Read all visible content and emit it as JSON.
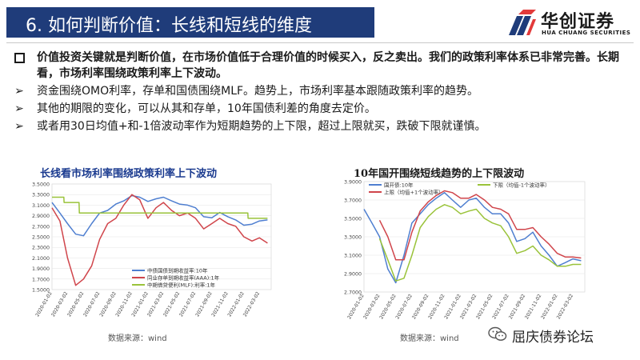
{
  "header": {
    "title": "6. 如何判断价值：长线和短线的维度",
    "logo_cn": "华创证券",
    "logo_en": "HUA CHUANG SECURITIES"
  },
  "bullets": [
    {
      "type": "square",
      "bold": true,
      "text": "价值投资关键就是判断价值，在市场价值低于合理价值的时候买入，反之卖出。我们的政策利率体系已非常完善。长期看，市场利率围绕政策利率上下波动。"
    },
    {
      "type": "arrow",
      "bold": false,
      "text": "资金围绕OMO利率，存单和国债围绕MLF。趋势上，市场利率基本跟随政策利率的趋势。"
    },
    {
      "type": "arrow",
      "bold": false,
      "text": "其他的期限的变化，可以从其和存单，10年国债利差的角度去定价。"
    },
    {
      "type": "arrow",
      "bold": false,
      "text": "或者用30日均值+和-1倍波动率作为短期趋势的上下限，超过上限就买，跌破下限就谨慎。"
    }
  ],
  "icons": {
    "bullet_square": "square-bullet-icon",
    "bullet_arrow": "arrow-bullet-icon",
    "wechat": "wechat-icon",
    "logo": "hc-logo-icon"
  },
  "chart_left": {
    "title": "长线看市场利率围绕政策利率上下波动",
    "source": "数据来源：wind"
  },
  "chart_right": {
    "title": "10年国开围绕短线趋势的上下限波动",
    "source": "数据来源：wind"
  },
  "footer": {
    "wechat_text": "屈庆债券论坛"
  },
  "colors": {
    "title_bar": "#1f3c7a",
    "blue": "#4f7fd0",
    "red": "#d0454b",
    "green": "#9ac33a",
    "logo_red": "#e23a3a",
    "logo_blue": "#1f3c7a"
  },
  "chart_data": [
    {
      "type": "line",
      "ylim": [
        1.5,
        3.5
      ],
      "y_ticks": [
        "3.5000",
        "3.3000",
        "3.1000",
        "2.9000",
        "2.7000",
        "2.5000",
        "2.3000",
        "2.1000",
        "1.9000",
        "1.7000",
        "1.5000"
      ],
      "x_ticks": [
        "2020-01-02",
        "2020-03-02",
        "2020-05-02",
        "2020-07-02",
        "2020-09-02",
        "2020-11-02",
        "2021-01-02",
        "2021-03-02",
        "2021-05-02",
        "2021-07-02",
        "2021-09-02",
        "2021-11-02",
        "2022-01-02",
        "2022-03-02"
      ],
      "legend_position": "bottom-center",
      "series": [
        {
          "name": "中债国债到期收益率:10年",
          "color": "#4f7fd0",
          "x": [
            "2020-01-02",
            "2020-02-01",
            "2020-03-01",
            "2020-04-01",
            "2020-05-01",
            "2020-06-01",
            "2020-07-01",
            "2020-08-01",
            "2020-09-01",
            "2020-10-01",
            "2020-11-01",
            "2020-12-01",
            "2021-01-01",
            "2021-02-01",
            "2021-03-01",
            "2021-04-01",
            "2021-05-01",
            "2021-06-01",
            "2021-07-01",
            "2021-08-01",
            "2021-09-01",
            "2021-10-01",
            "2021-11-01",
            "2021-12-01",
            "2022-01-01",
            "2022-02-01",
            "2022-03-01",
            "2022-04-01"
          ],
          "values": [
            3.15,
            2.95,
            2.75,
            2.55,
            2.52,
            2.75,
            2.95,
            3.0,
            3.12,
            3.18,
            3.28,
            3.25,
            3.17,
            3.22,
            3.25,
            3.18,
            3.12,
            3.1,
            3.05,
            2.88,
            2.86,
            2.96,
            2.88,
            2.82,
            2.72,
            2.74,
            2.8,
            2.82
          ]
        },
        {
          "name": "同业存单到期收益率(AAA):1年",
          "color": "#d0454b",
          "x": [
            "2020-01-02",
            "2020-02-01",
            "2020-03-01",
            "2020-04-01",
            "2020-05-01",
            "2020-06-01",
            "2020-07-01",
            "2020-08-01",
            "2020-09-01",
            "2020-10-01",
            "2020-11-01",
            "2020-12-01",
            "2021-01-01",
            "2021-02-01",
            "2021-03-01",
            "2021-04-01",
            "2021-05-01",
            "2021-06-01",
            "2021-07-01",
            "2021-08-01",
            "2021-09-01",
            "2021-10-01",
            "2021-11-01",
            "2021-12-01",
            "2022-01-01",
            "2022-02-01",
            "2022-03-01",
            "2022-04-01"
          ],
          "values": [
            3.05,
            2.8,
            2.1,
            1.58,
            1.7,
            1.95,
            2.45,
            2.75,
            2.85,
            3.1,
            3.3,
            3.2,
            2.85,
            3.05,
            3.15,
            3.0,
            2.9,
            2.95,
            2.85,
            2.65,
            2.75,
            2.85,
            2.75,
            2.7,
            2.5,
            2.42,
            2.48,
            2.38
          ]
        },
        {
          "name": "中期借贷便利(MLF):利率:1年",
          "color": "#9ac33a",
          "x": [
            "2020-01-02",
            "2020-02-16",
            "2020-02-17",
            "2020-04-14",
            "2020-04-15",
            "2022-01-16",
            "2022-01-17",
            "2022-04-01"
          ],
          "values": [
            3.25,
            3.25,
            3.15,
            3.15,
            2.95,
            2.95,
            2.85,
            2.85
          ]
        }
      ]
    },
    {
      "type": "line",
      "ylim": [
        2.7,
        3.9
      ],
      "y_ticks": [
        "3.9000",
        "3.7000",
        "3.5000",
        "3.3000",
        "3.1000",
        "2.9000",
        "2.7000"
      ],
      "x_ticks": [
        "2020-01-02",
        "2020-03-02",
        "2020-05-02",
        "2020-07-02",
        "2020-09-02",
        "2020-11-02",
        "2021-01-02",
        "2021-03-02",
        "2021-05-02",
        "2021-07-02",
        "2021-09-02",
        "2021-11-02",
        "2022-01-02",
        "2022-03-02"
      ],
      "legend_position": "top",
      "series": [
        {
          "name": "国开债:10年",
          "color": "#4f7fd0",
          "x": [
            "2020-01-02",
            "2020-02-01",
            "2020-03-01",
            "2020-04-01",
            "2020-05-01",
            "2020-06-01",
            "2020-07-01",
            "2020-08-01",
            "2020-09-01",
            "2020-10-01",
            "2020-11-01",
            "2020-12-01",
            "2021-01-01",
            "2021-02-01",
            "2021-03-01",
            "2021-04-01",
            "2021-05-01",
            "2021-06-01",
            "2021-07-01",
            "2021-08-01",
            "2021-09-01",
            "2021-10-01",
            "2021-11-01",
            "2021-12-01",
            "2022-01-01",
            "2022-02-01",
            "2022-03-01",
            "2022-04-01"
          ],
          "values": [
            3.6,
            3.45,
            3.3,
            2.95,
            2.8,
            3.1,
            3.45,
            3.55,
            3.65,
            3.72,
            3.78,
            3.7,
            3.62,
            3.7,
            3.72,
            3.62,
            3.55,
            3.55,
            3.45,
            3.25,
            3.28,
            3.35,
            3.2,
            3.1,
            2.98,
            3.02,
            3.06,
            3.04
          ]
        },
        {
          "name": "上限（均值+1个波动率）",
          "color": "#d0454b",
          "x": [
            "2020-03-01",
            "2020-04-01",
            "2020-05-01",
            "2020-06-01",
            "2020-07-01",
            "2020-08-01",
            "2020-09-01",
            "2020-10-01",
            "2020-11-01",
            "2020-12-01",
            "2021-01-01",
            "2021-02-01",
            "2021-03-01",
            "2021-04-01",
            "2021-05-01",
            "2021-06-01",
            "2021-07-01",
            "2021-08-01",
            "2021-09-01",
            "2021-10-01",
            "2021-11-01",
            "2021-12-01",
            "2022-01-01",
            "2022-02-01",
            "2022-03-01",
            "2022-04-01"
          ],
          "values": [
            3.48,
            3.3,
            3.05,
            3.05,
            3.35,
            3.58,
            3.68,
            3.75,
            3.8,
            3.78,
            3.72,
            3.72,
            3.76,
            3.7,
            3.62,
            3.6,
            3.55,
            3.38,
            3.38,
            3.4,
            3.3,
            3.22,
            3.12,
            3.08,
            3.08,
            3.07
          ]
        },
        {
          "name": "下限（均值-1个波动率）",
          "color": "#9ac33a",
          "x": [
            "2020-03-01",
            "2020-04-01",
            "2020-05-01",
            "2020-06-01",
            "2020-07-01",
            "2020-08-01",
            "2020-09-01",
            "2020-10-01",
            "2020-11-01",
            "2020-12-01",
            "2021-01-01",
            "2021-02-01",
            "2021-03-01",
            "2021-04-01",
            "2021-05-01",
            "2021-06-01",
            "2021-07-01",
            "2021-08-01",
            "2021-09-01",
            "2021-10-01",
            "2021-11-01",
            "2021-12-01",
            "2022-01-01",
            "2022-02-01",
            "2022-03-01",
            "2022-04-01"
          ],
          "values": [
            3.28,
            3.05,
            2.82,
            2.85,
            3.1,
            3.4,
            3.52,
            3.6,
            3.65,
            3.62,
            3.55,
            3.58,
            3.6,
            3.5,
            3.45,
            3.42,
            3.3,
            3.12,
            3.15,
            3.2,
            3.1,
            3.05,
            2.98,
            2.98,
            3.0,
            3.0
          ]
        }
      ]
    }
  ]
}
